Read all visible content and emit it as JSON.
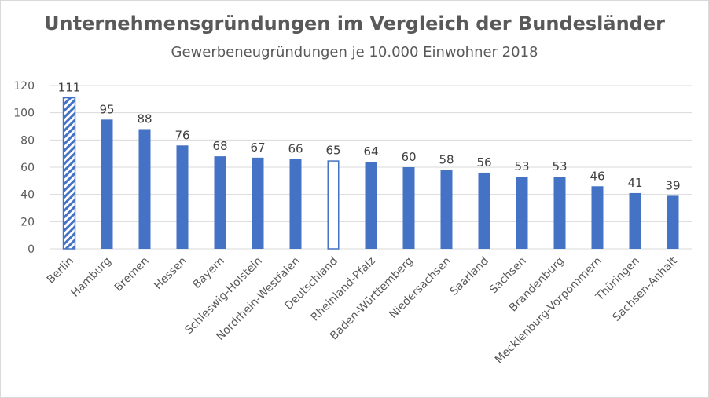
{
  "chart_data": {
    "type": "bar",
    "title": "Unternehmensgründungen im Vergleich der Bundesländer",
    "subtitle": "Gewerbeneugründungen je 10.000 Einwohner 2018",
    "categories": [
      "Berlin",
      "Hamburg",
      "Bremen",
      "Hessen",
      "Bayern",
      "Schleswig-Holstein",
      "Nordrhein-Westfalen",
      "Deutschland",
      "Rheinland-Pfalz",
      "Baden-Württemberg",
      "Niedersachsen",
      "Saarland",
      "Sachsen",
      "Brandenburg",
      "Mecklenburg-Vorpommern",
      "Thüringen",
      "Sachsen-Anhalt"
    ],
    "values": [
      111,
      95,
      88,
      76,
      68,
      67,
      66,
      65,
      64,
      60,
      58,
      56,
      53,
      53,
      46,
      41,
      39
    ],
    "bar_styles": [
      "hatched",
      "solid",
      "solid",
      "solid",
      "solid",
      "solid",
      "solid",
      "outline",
      "solid",
      "solid",
      "solid",
      "solid",
      "solid",
      "solid",
      "solid",
      "solid",
      "solid"
    ],
    "ylim": [
      0,
      120
    ],
    "yticks": [
      0,
      20,
      40,
      60,
      80,
      100,
      120
    ],
    "grid": true,
    "xlabel": "",
    "ylabel": "",
    "colors": {
      "bar": "#4472c4",
      "grid": "#d9d9d9",
      "text": "#595959"
    }
  }
}
